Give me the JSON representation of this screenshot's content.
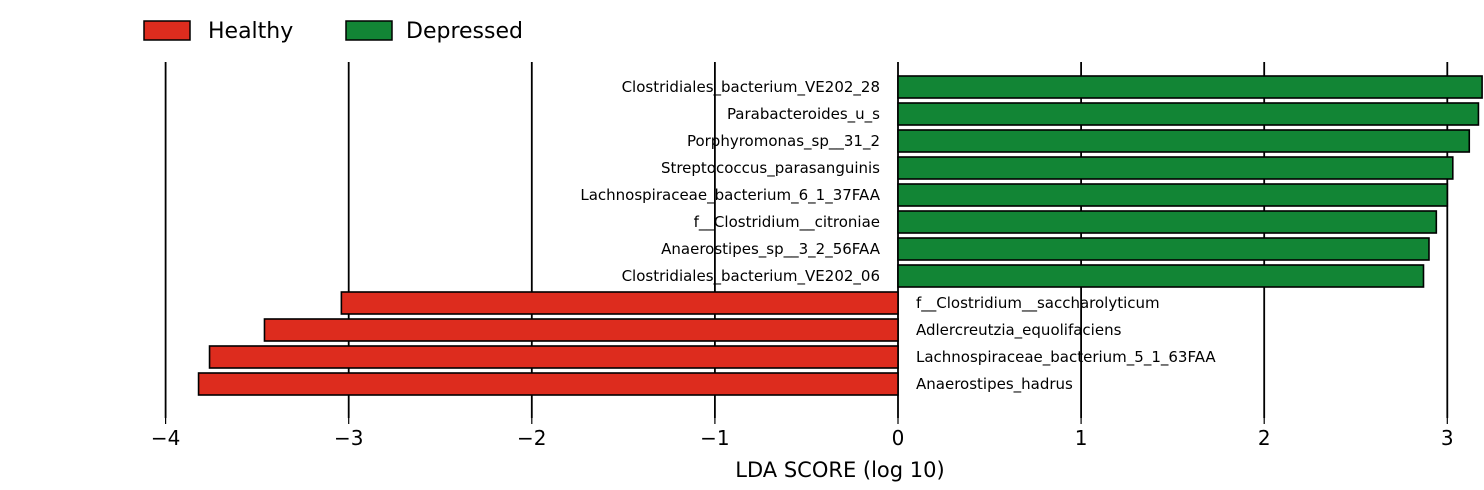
{
  "chart_data": {
    "type": "bar",
    "orientation": "horizontal",
    "xlabel": "LDA SCORE (log 10)",
    "xlim": [
      -4.0,
      3.2
    ],
    "xticks": [
      -4,
      -3,
      -2,
      -1,
      0,
      1,
      2,
      3
    ],
    "xtick_labels": [
      "−4",
      "−3",
      "−2",
      "−1",
      "0",
      "1",
      "2",
      "3"
    ],
    "grid": "vertical",
    "legend": {
      "placement": "top-left",
      "entries": [
        {
          "name": "Healthy",
          "color": "#dd2c1e"
        },
        {
          "name": "Depressed",
          "color": "#128535"
        }
      ]
    },
    "series": [
      {
        "name": "Depressed",
        "color": "#128535",
        "categories": [
          "Clostridiales_bacterium_VE202_28",
          "Parabacteroides_u_s",
          "Porphyromonas_sp__31_2",
          "Streptococcus_parasanguinis",
          "Lachnospiraceae_bacterium_6_1_37FAA",
          "f__Clostridium__citroniae",
          "Anaerostipes_sp__3_2_56FAA",
          "Clostridiales_bacterium_VE202_06"
        ],
        "values": [
          3.19,
          3.17,
          3.12,
          3.03,
          3.0,
          2.94,
          2.9,
          2.87
        ]
      },
      {
        "name": "Healthy",
        "color": "#dd2c1e",
        "categories": [
          "f__Clostridium__saccharolyticum",
          "Adlercreutzia_equolifaciens",
          "Lachnospiraceae_bacterium_5_1_63FAA",
          "Anaerostipes_hadrus"
        ],
        "values": [
          -3.04,
          -3.46,
          -3.76,
          -3.82
        ]
      }
    ]
  }
}
